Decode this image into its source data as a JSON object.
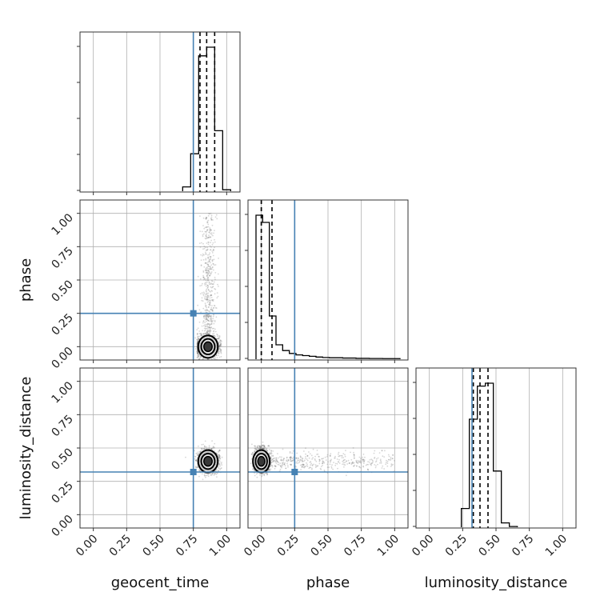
{
  "chart_data": {
    "type": "corner",
    "parameters": [
      "geocent_time",
      "phase",
      "luminosity_distance"
    ],
    "axis_range": [
      -0.1,
      1.1
    ],
    "tick_labels": [
      "0.00",
      "0.25",
      "0.50",
      "0.75",
      "1.00"
    ],
    "grid": true,
    "colors": {
      "truth": "#4682b4",
      "hist": "#000000",
      "points": "#6e6e6e"
    },
    "truths": {
      "geocent_time": 0.75,
      "phase": 0.25,
      "luminosity_distance": 0.32
    },
    "quantile_lines": {
      "geocent_time": [
        0.8,
        0.85,
        0.91
      ],
      "phase": [
        0.0,
        0.0,
        0.08
      ],
      "luminosity_distance": [
        0.33,
        0.38,
        0.44
      ]
    },
    "histograms": {
      "geocent_time": {
        "bin_edges": [
          0.67,
          0.73,
          0.79,
          0.85,
          0.91,
          0.97,
          1.03
        ],
        "heights": [
          0.03,
          0.26,
          0.94,
          1.0,
          0.42,
          0.01
        ]
      },
      "phase": {
        "bin_edges": [
          -0.04,
          0.01,
          0.06,
          0.11,
          0.16,
          0.21,
          0.26,
          0.31,
          0.36,
          0.41,
          0.46,
          0.51,
          0.56,
          0.61,
          0.66,
          0.71,
          0.76,
          0.81,
          0.86,
          0.91,
          0.96,
          1.01,
          1.04
        ],
        "heights": [
          1.0,
          0.95,
          0.3,
          0.1,
          0.06,
          0.04,
          0.03,
          0.025,
          0.02,
          0.015,
          0.012,
          0.01,
          0.01,
          0.008,
          0.008,
          0.006,
          0.006,
          0.005,
          0.005,
          0.004,
          0.004,
          0.004
        ]
      },
      "luminosity_distance": {
        "bin_edges": [
          0.24,
          0.3,
          0.36,
          0.42,
          0.48,
          0.54,
          0.6,
          0.66
        ],
        "heights": [
          0.13,
          0.75,
          0.98,
          1.0,
          0.39,
          0.03,
          0.005
        ]
      }
    },
    "scatter_summary": [
      {
        "x": "geocent_time",
        "y": "phase",
        "core": [
          0.86,
          0.0
        ],
        "spread": [
          0.035,
          0.04
        ],
        "tail_x_range": [
          0.78,
          0.96
        ],
        "tail_y_range": [
          0.0,
          1.0
        ]
      },
      {
        "x": "geocent_time",
        "y": "luminosity_distance",
        "core": [
          0.86,
          0.4
        ],
        "spread": [
          0.035,
          0.04
        ]
      },
      {
        "x": "phase",
        "y": "luminosity_distance",
        "core": [
          0.0,
          0.4
        ],
        "spread": [
          0.03,
          0.04
        ],
        "tail_x_range": [
          0.0,
          1.0
        ],
        "tail_y_range": [
          0.33,
          0.52
        ]
      }
    ]
  }
}
